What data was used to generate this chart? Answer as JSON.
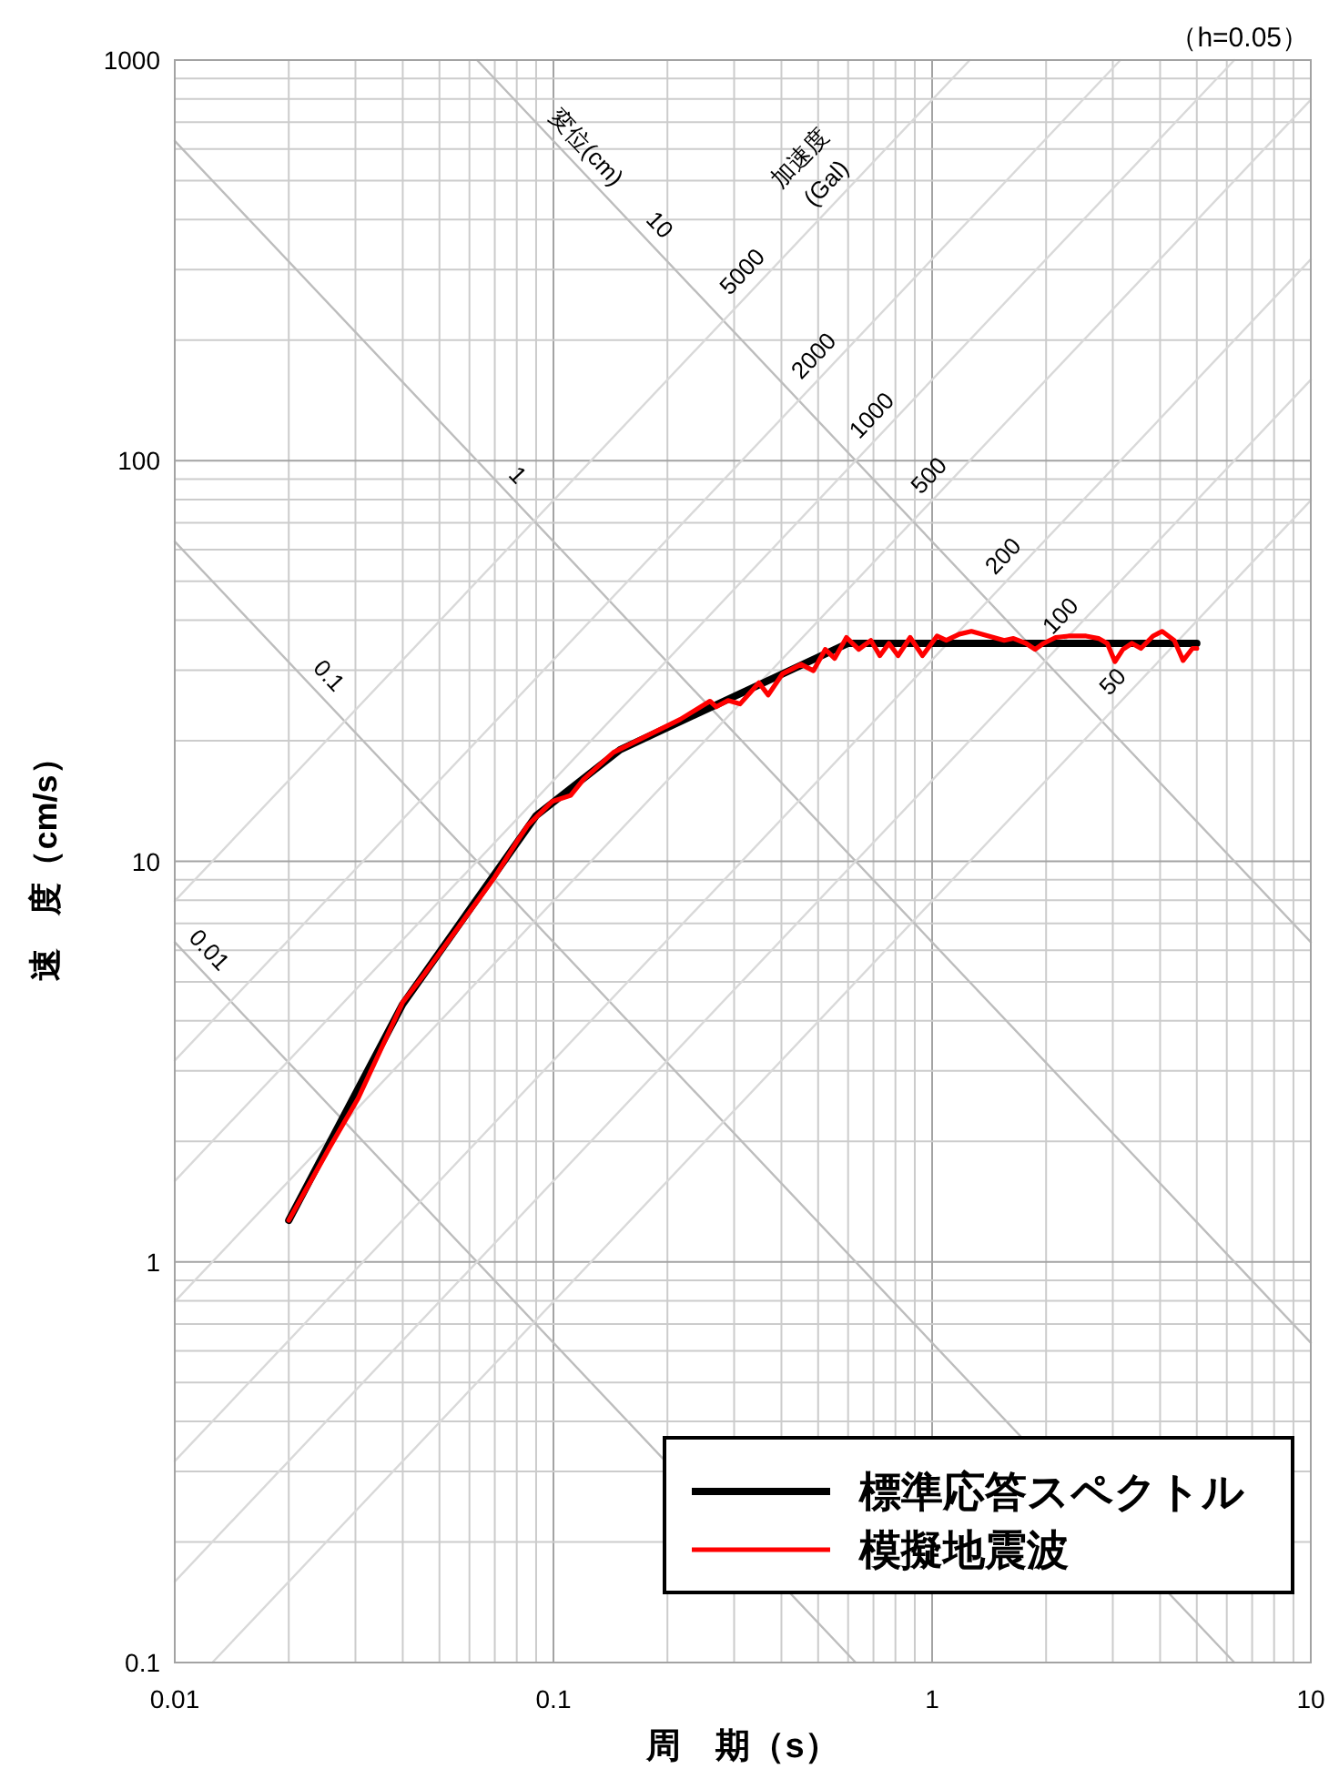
{
  "chart_data": {
    "type": "line",
    "xlabel": "周　期（s）",
    "ylabel": "速　度（cm/s）",
    "annotations": [
      "（h=0.05）",
      {
        "text": "変位(cm)",
        "x": 0.112,
        "y": 560
      },
      {
        "text": "10",
        "x": 0.175,
        "y": 359
      },
      {
        "text": "1",
        "x": 0.0738,
        "y": 85.2
      },
      {
        "text": "0.1",
        "x": 0.0234,
        "y": 26.9
      },
      {
        "text": "0.01",
        "x": 0.0113,
        "y": 5.56
      },
      {
        "text": "加速度\n(Gal)",
        "x": 0.573,
        "y": 456
      },
      {
        "text": "5000",
        "x": 0.344,
        "y": 274
      },
      {
        "text": "2000",
        "x": 0.531,
        "y": 169
      },
      {
        "text": "1000",
        "x": 0.755,
        "y": 120
      },
      {
        "text": "500",
        "x": 1.07,
        "y": 85.0
      },
      {
        "text": "200",
        "x": 1.68,
        "y": 53.5
      },
      {
        "text": "100",
        "x": 2.38,
        "y": 37.9
      },
      {
        "text": "50",
        "x": 3.27,
        "y": 26.0
      }
    ],
    "log": "xy",
    "grid": true,
    "legend": "bottom right",
    "xlim": [
      0.01,
      10
    ],
    "ylim": [
      0.1,
      1000
    ],
    "xticks": [
      0.01,
      {
        "value": 0.02,
        "label": null
      },
      {
        "value": 0.03,
        "label": null
      },
      {
        "value": 0.04,
        "label": null
      },
      {
        "value": 0.05,
        "label": null
      },
      {
        "value": 0.06,
        "label": null
      },
      {
        "value": 0.07,
        "label": null
      },
      {
        "value": 0.08,
        "label": null
      },
      {
        "value": 0.09,
        "label": null
      },
      0.1,
      {
        "value": 0.2,
        "label": null
      },
      {
        "value": 0.3,
        "label": null
      },
      {
        "value": 0.4,
        "label": null
      },
      {
        "value": 0.5,
        "label": null
      },
      {
        "value": 0.6,
        "label": null
      },
      {
        "value": 0.7,
        "label": null
      },
      {
        "value": 0.8,
        "label": null
      },
      {
        "value": 0.9,
        "label": null
      },
      1,
      {
        "value": 2,
        "label": null
      },
      {
        "value": 3,
        "label": null
      },
      {
        "value": 4,
        "label": null
      },
      {
        "value": 5,
        "label": null
      },
      {
        "value": 6,
        "label": null
      },
      {
        "value": 7,
        "label": null
      },
      {
        "value": 8,
        "label": null
      },
      {
        "value": 9,
        "label": null
      },
      10
    ],
    "yticks": [
      0.1,
      {
        "value": 0.2,
        "label": null
      },
      {
        "value": 0.3,
        "label": null
      },
      {
        "value": 0.4,
        "label": null
      },
      {
        "value": 0.5,
        "label": null
      },
      {
        "value": 0.6,
        "label": null
      },
      {
        "value": 0.7,
        "label": null
      },
      {
        "value": 0.8,
        "label": null
      },
      {
        "value": 0.9,
        "label": null
      },
      1,
      {
        "value": 2,
        "label": null
      },
      {
        "value": 3,
        "label": null
      },
      {
        "value": 4,
        "label": null
      },
      {
        "value": 5,
        "label": null
      },
      {
        "value": 6,
        "label": null
      },
      {
        "value": 7,
        "label": null
      },
      {
        "value": 8,
        "label": null
      },
      {
        "value": 9,
        "label": null
      },
      10,
      {
        "value": 20,
        "label": null
      },
      {
        "value": 30,
        "label": null
      },
      {
        "value": 40,
        "label": null
      },
      {
        "value": 50,
        "label": null
      },
      {
        "value": 60,
        "label": null
      },
      {
        "value": 70,
        "label": null
      },
      {
        "value": 80,
        "label": null
      },
      {
        "value": 90,
        "label": null
      },
      100,
      {
        "value": 200,
        "label": null
      },
      {
        "value": 300,
        "label": null
      },
      {
        "value": 400,
        "label": null
      },
      {
        "value": 500,
        "label": null
      },
      {
        "value": 600,
        "label": null
      },
      {
        "value": 700,
        "label": null
      },
      {
        "value": 800,
        "label": null
      },
      {
        "value": 900,
        "label": null
      },
      1000
    ],
    "series": [
      {
        "color": "#bdbdbd",
        "x": [
          0.01,
          0.6283
        ],
        "values": [
          6.283,
          0.1
        ]
      },
      {
        "color": "#bdbdbd",
        "x": [
          0.01,
          6.283
        ],
        "values": [
          62.83,
          0.1
        ]
      },
      {
        "color": "#bdbdbd",
        "x": [
          0.01,
          10
        ],
        "values": [
          628.3,
          0.6283
        ]
      },
      {
        "color": "#bdbdbd",
        "x": [
          0.06283,
          10
        ],
        "values": [
          1000,
          6.283
        ]
      },
      {
        "color": "#d9d9d9",
        "x": [
          0.01257,
          10
        ],
        "values": [
          0.1,
          79.58
        ]
      },
      {
        "color": "#d9d9d9",
        "x": [
          0.01,
          10
        ],
        "values": [
          0.1592,
          159.2
        ]
      },
      {
        "color": "#d9d9d9",
        "x": [
          0.01,
          10
        ],
        "values": [
          0.3183,
          318.3
        ]
      },
      {
        "color": "#d9d9d9",
        "x": [
          0.01,
          10
        ],
        "values": [
          0.7958,
          795.8
        ]
      },
      {
        "color": "#d9d9d9",
        "x": [
          0.01,
          6.283
        ],
        "values": [
          1.592,
          1000
        ]
      },
      {
        "color": "#d9d9d9",
        "x": [
          0.01,
          3.142
        ],
        "values": [
          3.183,
          1000
        ]
      },
      {
        "color": "#d9d9d9",
        "x": [
          0.01,
          1.257
        ],
        "values": [
          7.958,
          1000
        ]
      },
      {
        "name": "標準応答スペクトル",
        "color": "#000000",
        "x": [
          0.02,
          0.04,
          0.09,
          0.15,
          0.6,
          5
        ],
        "values": [
          1.27,
          4.4,
          13.0,
          19.0,
          35,
          35
        ]
      },
      {
        "name": "模擬地震波",
        "color": "#ff0000",
        "x": [
          0.02,
          0.0258,
          0.0305,
          0.04,
          0.0457,
          0.07,
          0.0796,
          0.0856,
          0.0992,
          0.111,
          0.12,
          0.144,
          0.179,
          0.216,
          0.259,
          0.269,
          0.289,
          0.311,
          0.349,
          0.369,
          0.403,
          0.451,
          0.486,
          0.522,
          0.553,
          0.594,
          0.64,
          0.689,
          0.728,
          0.769,
          0.813,
          0.875,
          0.943,
          1.03,
          1.09,
          1.18,
          1.27,
          1.41,
          1.55,
          1.64,
          1.77,
          1.87,
          1.97,
          2.12,
          2.29,
          2.55,
          2.75,
          2.9,
          3.04,
          3.19,
          3.37,
          3.56,
          3.83,
          4.05,
          4.36,
          4.6,
          4.87,
          5.0
        ],
        "values": [
          1.27,
          1.95,
          2.56,
          4.45,
          5.24,
          9.14,
          11.1,
          12.3,
          14.1,
          14.6,
          16.0,
          18.7,
          20.7,
          22.6,
          25.1,
          24.3,
          25.2,
          24.7,
          27.9,
          26.0,
          29.4,
          31.0,
          29.9,
          33.8,
          32.1,
          36.2,
          33.8,
          35.6,
          32.6,
          35.0,
          32.6,
          36.2,
          32.6,
          36.5,
          35.6,
          36.9,
          37.5,
          36.5,
          35.6,
          36.0,
          35.0,
          33.8,
          35.0,
          36.2,
          36.5,
          36.5,
          36.0,
          35.0,
          31.5,
          33.8,
          35.0,
          34.0,
          36.5,
          37.5,
          35.6,
          31.7,
          34.0,
          34.0
        ]
      }
    ]
  }
}
